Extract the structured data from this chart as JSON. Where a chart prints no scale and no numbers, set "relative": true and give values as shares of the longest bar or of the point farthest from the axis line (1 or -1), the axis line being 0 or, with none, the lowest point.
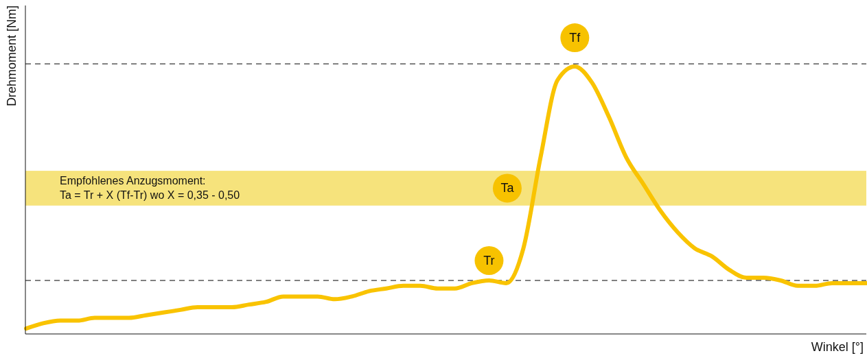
{
  "chart_data": {
    "type": "line",
    "relative": true,
    "xlabel": "Winkel [°]",
    "ylabel": "Drehmoment [Nm]",
    "categories": [
      null,
      null,
      null,
      null,
      null,
      null,
      null,
      null,
      null,
      null,
      null,
      null,
      null,
      null,
      null,
      null,
      null,
      null,
      null,
      null,
      null,
      null,
      null,
      null,
      null,
      null,
      null,
      null,
      null,
      null,
      null,
      null,
      null,
      null,
      null,
      null,
      null,
      null,
      null,
      null,
      null,
      null,
      null,
      null,
      null,
      null,
      null,
      null,
      null,
      null
    ],
    "series": [
      {
        "color": "#f9c300",
        "values": [
          0.02,
          0.04,
          0.05,
          0.05,
          0.06,
          0.06,
          0.06,
          0.07,
          0.08,
          0.09,
          0.1,
          0.1,
          0.1,
          0.11,
          0.12,
          0.14,
          0.14,
          0.14,
          0.13,
          0.14,
          0.16,
          0.17,
          0.18,
          0.18,
          0.17,
          0.17,
          0.19,
          0.2,
          0.19,
          0.32,
          0.66,
          0.95,
          1,
          0.94,
          0.81,
          0.66,
          0.56,
          0.46,
          0.38,
          0.32,
          0.29,
          0.24,
          0.21,
          0.21,
          0.2,
          0.18,
          0.18,
          0.19,
          0.19,
          0.19
        ]
      }
    ],
    "ref_lines": [
      {
        "axis": "y",
        "value": 1.01,
        "label": "Tf",
        "line_style": "dashed",
        "color": "#000000"
      },
      {
        "axis": "y",
        "value": 0.2,
        "label": "Tr",
        "line_style": "dashed",
        "color": "#000000"
      }
    ],
    "bands": [
      {
        "axis": "y",
        "from": 0.48,
        "to": 0.61,
        "label": "Ta",
        "color": "#f6e37c"
      }
    ],
    "annotations": [
      "Empfohlenes Anzugsmoment:",
      "Ta = Tr + X (Tf-Tr) wo X = 0,35 - 0,50"
    ]
  }
}
